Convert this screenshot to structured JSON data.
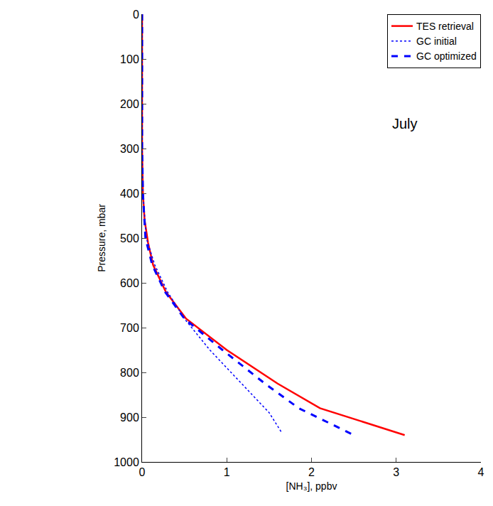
{
  "chart_data": {
    "type": "line",
    "xlabel": "[NH₃], ppbv",
    "ylabel": "Pressure, mbar",
    "annotations": [
      {
        "text": "July",
        "x": 3.1,
        "y": 245
      }
    ],
    "xlim": [
      0,
      4
    ],
    "xticks": [
      0,
      1,
      2,
      3,
      4
    ],
    "ylim": [
      1000,
      0
    ],
    "yticks": [
      0,
      100,
      200,
      300,
      400,
      500,
      600,
      700,
      800,
      900,
      1000
    ],
    "grid": false,
    "legend": "upper right",
    "series": [
      {
        "name": "TES retrieval",
        "color": "#ff0000",
        "line_style": "solid",
        "x": [
          0,
          0,
          0,
          0,
          0.01,
          0.03,
          0.07,
          0.13,
          0.28,
          0.52,
          1.0,
          1.6,
          2.1,
          3.1
        ],
        "values": [
          0,
          100,
          200,
          300,
          400,
          460,
          510,
          560,
          620,
          680,
          750,
          825,
          880,
          940
        ]
      },
      {
        "name": "GC initial",
        "color": "#0000ff",
        "line_style": "dot",
        "x": [
          0,
          0,
          0,
          0,
          0.01,
          0.05,
          0.15,
          0.3,
          0.5,
          0.8,
          1.2,
          1.5,
          1.65
        ],
        "values": [
          0,
          100,
          200,
          300,
          400,
          500,
          560,
          620,
          680,
          750,
          830,
          890,
          935
        ]
      },
      {
        "name": "GC optimized",
        "color": "#0000ff",
        "line_style": "dash",
        "x": [
          0,
          0,
          0,
          0,
          0.01,
          0.04,
          0.12,
          0.27,
          0.5,
          0.95,
          1.45,
          1.85,
          2.5
        ],
        "values": [
          0,
          100,
          200,
          300,
          400,
          500,
          560,
          620,
          680,
          750,
          825,
          880,
          940
        ]
      }
    ]
  }
}
